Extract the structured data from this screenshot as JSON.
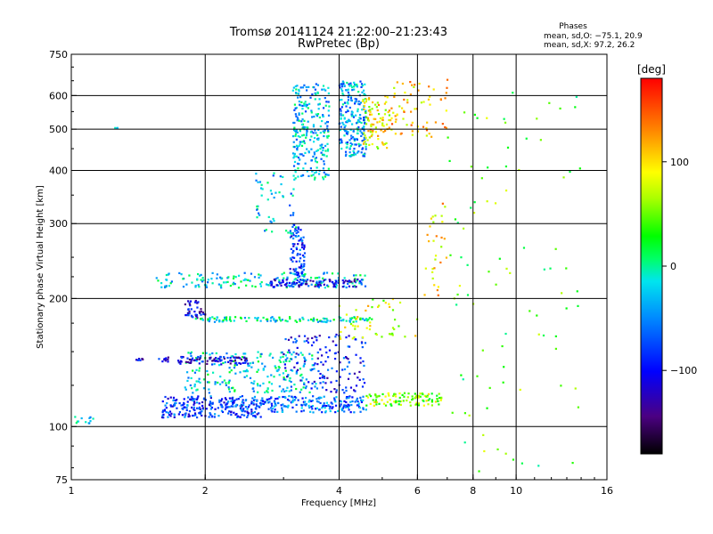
{
  "chart_data": {
    "type": "scatter",
    "title": "Tromsø 20141124 21:22:00–21:23:43",
    "subtitle": "RwPretec (Bp)",
    "xlabel": "Frequency [MHz]",
    "ylabel": "Stationary phase Virtual Height [km]",
    "x_scale": "log",
    "y_scale": "log",
    "xlim": [
      1,
      16
    ],
    "ylim": [
      75,
      750
    ],
    "x_ticks": [
      1,
      2,
      4,
      6,
      8,
      10,
      16
    ],
    "x_tick_labels": [
      "1",
      "2",
      "4",
      "6",
      "8",
      "10",
      "16"
    ],
    "y_ticks": [
      75,
      100,
      200,
      300,
      400,
      500,
      600,
      750
    ],
    "y_tick_labels": [
      "75",
      "100",
      "200",
      "300",
      "400",
      "500",
      "600",
      "750"
    ],
    "grid": true,
    "grid_x": [
      2,
      4,
      6,
      8,
      10
    ],
    "grid_y": [
      100,
      200,
      300,
      400,
      500,
      600
    ],
    "stats": {
      "heading": "Phases",
      "line_o": "mean, sd,O: −75.1, 20.9",
      "line_x": "mean, sd,X:  97.2, 26.2"
    },
    "colorbar": {
      "label": "[deg]",
      "min": -180,
      "max": 180,
      "ticks": [
        100,
        0,
        -100
      ],
      "tick_labels": [
        "100",
        "0",
        "−100"
      ]
    },
    "clusters": [
      {
        "x_range": [
          1.0,
          1.12
        ],
        "y_range": [
          101,
          106
        ],
        "phase": -20,
        "count": 12
      },
      {
        "x_range": [
          1.25,
          1.27
        ],
        "y_range": [
          500,
          508
        ],
        "phase": -40,
        "count": 3
      },
      {
        "x_range": [
          1.4,
          1.45
        ],
        "y_range": [
          143,
          145
        ],
        "phase": -100,
        "count": 8
      },
      {
        "x_range": [
          1.6,
          2.7
        ],
        "y_range": [
          105,
          118
        ],
        "phase": -80,
        "count": 260
      },
      {
        "x_range": [
          2.7,
          4.6
        ],
        "y_range": [
          108,
          118
        ],
        "phase": -60,
        "count": 180
      },
      {
        "x_range": [
          4.6,
          6.8
        ],
        "y_range": [
          112,
          120
        ],
        "phase": 60,
        "count": 110
      },
      {
        "x_range": [
          1.8,
          3.6
        ],
        "y_range": [
          120,
          150
        ],
        "phase": -20,
        "count": 220
      },
      {
        "x_range": [
          1.55,
          2.5
        ],
        "y_range": [
          140,
          146
        ],
        "phase": -110,
        "count": 90
      },
      {
        "x_range": [
          3.0,
          4.6
        ],
        "y_range": [
          120,
          165
        ],
        "phase": -90,
        "count": 140
      },
      {
        "x_range": [
          1.8,
          2.0
        ],
        "y_range": [
          180,
          198
        ],
        "phase": -110,
        "count": 40
      },
      {
        "x_range": [
          1.9,
          4.8
        ],
        "y_range": [
          176,
          181
        ],
        "phase": -10,
        "count": 120
      },
      {
        "x_range": [
          1.55,
          4.6
        ],
        "y_range": [
          212,
          230
        ],
        "phase": -20,
        "count": 170
      },
      {
        "x_range": [
          2.8,
          4.5
        ],
        "y_range": [
          213,
          222
        ],
        "phase": -100,
        "count": 100
      },
      {
        "x_range": [
          3.1,
          3.35
        ],
        "y_range": [
          225,
          300
        ],
        "phase": -80,
        "count": 90
      },
      {
        "x_range": [
          2.6,
          3.2
        ],
        "y_range": [
          280,
          400
        ],
        "phase": -30,
        "count": 50
      },
      {
        "x_range": [
          3.15,
          3.8
        ],
        "y_range": [
          380,
          640
        ],
        "phase": -30,
        "count": 260
      },
      {
        "x_range": [
          4.0,
          4.6
        ],
        "y_range": [
          430,
          650
        ],
        "phase": -40,
        "count": 230
      },
      {
        "x_range": [
          4.5,
          5.2
        ],
        "y_range": [
          450,
          600
        ],
        "phase": 90,
        "count": 90
      },
      {
        "x_range": [
          5.2,
          7.1
        ],
        "y_range": [
          480,
          660
        ],
        "phase": 110,
        "count": 70
      },
      {
        "x_range": [
          4.0,
          6.0
        ],
        "y_range": [
          160,
          200
        ],
        "phase": 80,
        "count": 50
      },
      {
        "x_range": [
          6.2,
          7.0
        ],
        "y_range": [
          200,
          340
        ],
        "phase": 100,
        "count": 30
      },
      {
        "x_range": [
          7.0,
          14.0
        ],
        "y_range": [
          78,
          640
        ],
        "phase": 40,
        "count": 90
      }
    ]
  }
}
